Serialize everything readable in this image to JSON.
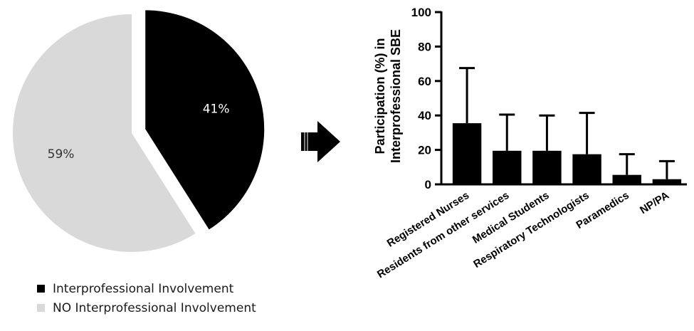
{
  "pie_chart": {
    "slices": [
      {
        "name": "Interprofessional Involvement",
        "value": 41,
        "label": "41%",
        "color": "#000000",
        "label_color": "#ffffff",
        "exploded": true
      },
      {
        "name": "NO Interprofessional Involvement",
        "value": 59,
        "label": "59%",
        "color": "#d9d9d9",
        "label_color": "#333333",
        "exploded": false
      }
    ]
  },
  "legend": {
    "items": [
      {
        "label": "Interprofessional Involvement",
        "color": "#000000"
      },
      {
        "label": "NO Interprofessional Involvement",
        "color": "#d9d9d9"
      }
    ]
  },
  "arrow": {
    "icon": "right-arrow-icon",
    "color": "#000000"
  },
  "chart_data": [
    {
      "type": "pie",
      "categories": [
        "Interprofessional Involvement",
        "NO Interprofessional Involvement"
      ],
      "values": [
        41,
        59
      ],
      "labels": [
        "41%",
        "59%"
      ],
      "colors": [
        "#000000",
        "#d9d9d9"
      ],
      "legend_position": "bottom-left"
    },
    {
      "type": "bar",
      "categories": [
        "Registered Nurses",
        "Residents from other services",
        "Medical Students",
        "Respiratory Technologists",
        "Paramedics",
        "NP/PA"
      ],
      "values": [
        35.5,
        19.5,
        19.5,
        17.5,
        5.5,
        3
      ],
      "error_upper": [
        67.5,
        40.5,
        40,
        41.5,
        17.5,
        13.5
      ],
      "ylabel_line1": "Participation (%) in",
      "ylabel_line2": "Interprofessional SBE",
      "ylim": [
        0,
        100
      ],
      "yticks": [
        0,
        20,
        40,
        60,
        80,
        100
      ],
      "bar_color": "#000000",
      "grid": false
    }
  ]
}
